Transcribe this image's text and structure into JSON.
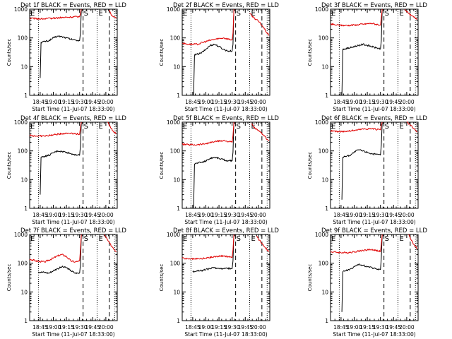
{
  "figure": {
    "ylabel": "Counts/sec",
    "xlabel": "Start Time (11-Jul-07 18:33:00)",
    "xtick_labels": [
      "18:45",
      "19:00",
      "19:15",
      "19:30",
      "19:45",
      "20:00"
    ],
    "ytick_labels": [
      "1",
      "10",
      "100",
      "1000"
    ],
    "marker_labels": [
      "E",
      "S",
      "E"
    ],
    "colors": {
      "events": "#000000",
      "lld": "#e00000",
      "axes": "#000000"
    }
  },
  "chart_data": [
    {
      "type": "line",
      "title": "Det 1f BLACK = Events, RED = LLD",
      "xlabel": "Start Time (11-Jul-07 18:33:00)",
      "ylabel": "Counts/sec",
      "xlim": [
        "18:33",
        "20:13"
      ],
      "ylim": [
        1,
        1000
      ],
      "yscale": "log",
      "series": [
        {
          "color": "#000000",
          "x": [
            "18:45",
            "18:46",
            "18:50",
            "18:55",
            "19:00",
            "19:05",
            "19:10",
            "19:15",
            "19:20",
            "19:25",
            "19:30",
            "19:31",
            "19:32"
          ],
          "y": [
            4,
            70,
            75,
            80,
            100,
            115,
            110,
            100,
            90,
            85,
            80,
            150,
            1000
          ]
        },
        {
          "color": "#e00000",
          "x": [
            "18:33",
            "18:40",
            "18:50",
            "19:00",
            "19:10",
            "19:20",
            "19:30",
            "19:31",
            "19:32"
          ],
          "y": [
            480,
            470,
            460,
            490,
            510,
            530,
            550,
            700,
            1000
          ]
        },
        {
          "color": "#e00000",
          "x": [
            "20:04",
            "20:06",
            "20:09",
            "20:12"
          ],
          "y": [
            950,
            650,
            550,
            480
          ]
        }
      ],
      "events": {
        "dotted_vlines": [
          "18:43",
          "19:50",
          "20:10"
        ],
        "dashed_vlines": [
          "19:34",
          "20:04"
        ]
      }
    },
    {
      "type": "line",
      "title": "Det 2f BLACK = Events, RED = LLD",
      "xlabel": "Start Time (11-Jul-07 18:33:00)",
      "ylabel": "Counts/sec",
      "xlim": [
        "18:33",
        "20:13"
      ],
      "ylim": [
        1,
        1000
      ],
      "yscale": "log",
      "series": [
        {
          "color": "#000000",
          "x": [
            "18:46",
            "18:47",
            "18:50",
            "18:55",
            "19:00",
            "19:05",
            "19:10",
            "19:15",
            "19:20",
            "19:25",
            "19:30",
            "19:31",
            "19:32"
          ],
          "y": [
            1,
            25,
            27,
            30,
            40,
            55,
            60,
            50,
            40,
            35,
            35,
            60,
            1000
          ]
        },
        {
          "color": "#e00000",
          "x": [
            "18:33",
            "18:40",
            "18:50",
            "19:00",
            "19:10",
            "19:20",
            "19:30",
            "19:31",
            "19:32"
          ],
          "y": [
            65,
            60,
            60,
            75,
            90,
            100,
            85,
            150,
            1000
          ]
        },
        {
          "color": "#e00000",
          "x": [
            "19:50",
            "19:55",
            "20:00",
            "20:05",
            "20:12"
          ],
          "y": [
            700,
            500,
            380,
            250,
            120
          ]
        }
      ],
      "events": {
        "dotted_vlines": [
          "18:43",
          "19:50",
          "20:10"
        ],
        "dashed_vlines": [
          "19:34",
          "20:04"
        ]
      }
    },
    {
      "type": "line",
      "title": "Det 3f BLACK = Events, RED = LLD",
      "xlabel": "Start Time (11-Jul-07 18:33:00)",
      "ylabel": "Counts/sec",
      "xlim": [
        "18:33",
        "20:13"
      ],
      "ylim": [
        1,
        1000
      ],
      "yscale": "log",
      "series": [
        {
          "color": "#000000",
          "x": [
            "18:46",
            "18:47",
            "18:50",
            "18:55",
            "19:00",
            "19:05",
            "19:10",
            "19:15",
            "19:20",
            "19:25",
            "19:30",
            "19:31",
            "19:32"
          ],
          "y": [
            1,
            40,
            42,
            45,
            50,
            55,
            60,
            55,
            50,
            45,
            42,
            80,
            1000
          ]
        },
        {
          "color": "#e00000",
          "x": [
            "18:33",
            "18:40",
            "18:50",
            "19:00",
            "19:10",
            "19:20",
            "19:30",
            "19:31",
            "19:32"
          ],
          "y": [
            300,
            280,
            270,
            280,
            300,
            320,
            280,
            500,
            1000
          ]
        },
        {
          "color": "#e00000",
          "x": [
            "19:58",
            "20:00",
            "20:05",
            "20:12"
          ],
          "y": [
            1000,
            800,
            600,
            450
          ]
        }
      ],
      "events": {
        "dotted_vlines": [
          "18:43",
          "19:50",
          "20:10"
        ],
        "dashed_vlines": [
          "19:34",
          "20:04"
        ]
      }
    },
    {
      "type": "line",
      "title": "Det 4f BLACK = Events, RED = LLD",
      "xlabel": "Start Time (11-Jul-07 18:33:00)",
      "ylabel": "Counts/sec",
      "xlim": [
        "18:33",
        "20:13"
      ],
      "ylim": [
        1,
        1000
      ],
      "yscale": "log",
      "series": [
        {
          "color": "#000000",
          "x": [
            "18:45",
            "18:46",
            "18:50",
            "18:55",
            "19:00",
            "19:05",
            "19:10",
            "19:15",
            "19:20",
            "19:25",
            "19:30",
            "19:31",
            "19:32"
          ],
          "y": [
            3,
            60,
            65,
            70,
            85,
            100,
            95,
            90,
            80,
            75,
            70,
            150,
            1000
          ]
        },
        {
          "color": "#e00000",
          "x": [
            "18:33",
            "18:40",
            "18:50",
            "19:00",
            "19:10",
            "19:20",
            "19:30",
            "19:31",
            "19:32"
          ],
          "y": [
            350,
            330,
            330,
            360,
            400,
            420,
            380,
            650,
            1000
          ]
        },
        {
          "color": "#e00000",
          "x": [
            "20:02",
            "20:05",
            "20:08",
            "20:12"
          ],
          "y": [
            1000,
            700,
            500,
            400
          ]
        }
      ],
      "events": {
        "dotted_vlines": [
          "18:43",
          "19:50",
          "20:10"
        ],
        "dashed_vlines": [
          "19:34",
          "20:04"
        ]
      }
    },
    {
      "type": "line",
      "title": "Det 5f BLACK = Events, RED = LLD",
      "xlabel": "Start Time (11-Jul-07 18:33:00)",
      "ylabel": "Counts/sec",
      "xlim": [
        "18:33",
        "20:13"
      ],
      "ylim": [
        1,
        1000
      ],
      "yscale": "log",
      "series": [
        {
          "color": "#000000",
          "x": [
            "18:46",
            "18:47",
            "18:50",
            "18:55",
            "19:00",
            "19:05",
            "19:10",
            "19:15",
            "19:20",
            "19:25",
            "19:30",
            "19:31",
            "19:32"
          ],
          "y": [
            1,
            35,
            38,
            40,
            45,
            55,
            60,
            55,
            50,
            45,
            45,
            90,
            1000
          ]
        },
        {
          "color": "#e00000",
          "x": [
            "18:33",
            "18:40",
            "18:50",
            "19:00",
            "19:10",
            "19:20",
            "19:30",
            "19:31",
            "19:32"
          ],
          "y": [
            170,
            165,
            165,
            180,
            210,
            230,
            200,
            350,
            1000
          ]
        },
        {
          "color": "#e00000",
          "x": [
            "19:52",
            "19:55",
            "20:00",
            "20:05",
            "20:12"
          ],
          "y": [
            900,
            650,
            500,
            380,
            220
          ]
        }
      ],
      "events": {
        "dotted_vlines": [
          "18:43",
          "19:50",
          "20:10"
        ],
        "dashed_vlines": [
          "19:34",
          "20:04"
        ]
      }
    },
    {
      "type": "line",
      "title": "Det 6f BLACK = Events, RED = LLD",
      "xlabel": "Start Time (11-Jul-07 18:33:00)",
      "ylabel": "Counts/sec",
      "xlim": [
        "18:33",
        "20:13"
      ],
      "ylim": [
        1,
        1000
      ],
      "yscale": "log",
      "series": [
        {
          "color": "#000000",
          "x": [
            "18:46",
            "18:47",
            "18:50",
            "18:55",
            "19:00",
            "19:05",
            "19:10",
            "19:15",
            "19:20",
            "19:25",
            "19:30",
            "19:31",
            "19:32"
          ],
          "y": [
            2,
            60,
            65,
            70,
            90,
            110,
            100,
            90,
            80,
            75,
            72,
            160,
            1000
          ]
        },
        {
          "color": "#e00000",
          "x": [
            "18:33",
            "18:40",
            "18:50",
            "19:00",
            "19:10",
            "19:20",
            "19:30",
            "19:31",
            "19:32"
          ],
          "y": [
            500,
            480,
            480,
            520,
            580,
            600,
            540,
            800,
            1000
          ]
        },
        {
          "color": "#e00000",
          "x": [
            "20:00",
            "20:04",
            "20:08",
            "20:12"
          ],
          "y": [
            1000,
            800,
            600,
            450
          ]
        }
      ],
      "events": {
        "dotted_vlines": [
          "18:43",
          "19:50",
          "20:10"
        ],
        "dashed_vlines": [
          "19:34",
          "20:04"
        ]
      }
    },
    {
      "type": "line",
      "title": "Det 7f BLACK = Events, RED = LLD",
      "xlabel": "Start Time (11-Jul-07 18:33:00)",
      "ylabel": "Counts/sec",
      "xlim": [
        "18:33",
        "20:13"
      ],
      "ylim": [
        1,
        1000
      ],
      "yscale": "log",
      "series": [
        {
          "color": "#000000",
          "x": [
            "18:43",
            "18:50",
            "18:55",
            "19:00",
            "19:05",
            "19:10",
            "19:15",
            "19:20",
            "19:25",
            "19:30",
            "19:31",
            "19:32"
          ],
          "y": [
            50,
            48,
            45,
            55,
            65,
            75,
            70,
            55,
            45,
            45,
            90,
            1000
          ]
        },
        {
          "color": "#e00000",
          "x": [
            "18:33",
            "18:40",
            "18:50",
            "19:00",
            "19:05",
            "19:10",
            "19:15",
            "19:20",
            "19:25",
            "19:30",
            "19:31",
            "19:32"
          ],
          "y": [
            140,
            120,
            110,
            150,
            180,
            200,
            170,
            120,
            110,
            120,
            300,
            1000
          ]
        },
        {
          "color": "#e00000",
          "x": [
            "19:58",
            "20:00",
            "20:04",
            "20:08",
            "20:12"
          ],
          "y": [
            1000,
            800,
            500,
            350,
            250
          ]
        }
      ],
      "events": {
        "dotted_vlines": [
          "18:43",
          "19:50",
          "20:10"
        ],
        "dashed_vlines": [
          "19:34",
          "20:04"
        ]
      }
    },
    {
      "type": "line",
      "title": "Det 8f BLACK = Events, RED = LLD",
      "xlabel": "Start Time (11-Jul-07 18:33:00)",
      "ylabel": "Counts/sec",
      "xlim": [
        "18:33",
        "20:13"
      ],
      "ylim": [
        1,
        1000
      ],
      "yscale": "log",
      "series": [
        {
          "color": "#000000",
          "x": [
            "18:45",
            "18:50",
            "18:55",
            "19:00",
            "19:05",
            "19:10",
            "19:15",
            "19:20",
            "19:25",
            "19:30",
            "19:31",
            "19:32"
          ],
          "y": [
            50,
            55,
            55,
            60,
            65,
            70,
            65,
            65,
            65,
            65,
            120,
            1000
          ]
        },
        {
          "color": "#e00000",
          "x": [
            "18:33",
            "18:40",
            "18:50",
            "19:00",
            "19:10",
            "19:20",
            "19:30",
            "19:31",
            "19:32"
          ],
          "y": [
            150,
            140,
            140,
            150,
            170,
            180,
            160,
            300,
            1000
          ]
        },
        {
          "color": "#e00000",
          "x": [
            "19:58",
            "20:00",
            "20:04",
            "20:08",
            "20:12"
          ],
          "y": [
            900,
            700,
            500,
            350,
            250
          ]
        }
      ],
      "events": {
        "dotted_vlines": [
          "18:43",
          "19:50",
          "20:10"
        ],
        "dashed_vlines": [
          "19:34",
          "20:04"
        ]
      }
    },
    {
      "type": "line",
      "title": "Det 9f BLACK = Events, RED = LLD",
      "xlabel": "Start Time (11-Jul-07 18:33:00)",
      "ylabel": "Counts/sec",
      "xlim": [
        "18:33",
        "20:13"
      ],
      "ylim": [
        1,
        1000
      ],
      "yscale": "log",
      "series": [
        {
          "color": "#000000",
          "x": [
            "18:46",
            "18:47",
            "18:50",
            "18:55",
            "19:00",
            "19:05",
            "19:10",
            "19:15",
            "19:20",
            "19:25",
            "19:30",
            "19:31",
            "19:32"
          ],
          "y": [
            2,
            50,
            55,
            60,
            75,
            90,
            85,
            75,
            70,
            65,
            60,
            150,
            1000
          ]
        },
        {
          "color": "#e00000",
          "x": [
            "18:33",
            "18:40",
            "18:50",
            "19:00",
            "19:10",
            "19:20",
            "19:30",
            "19:31",
            "19:32"
          ],
          "y": [
            250,
            240,
            230,
            250,
            280,
            300,
            260,
            450,
            1000
          ]
        },
        {
          "color": "#e00000",
          "x": [
            "20:02",
            "20:05",
            "20:08",
            "20:12"
          ],
          "y": [
            1000,
            650,
            450,
            320
          ]
        }
      ],
      "events": {
        "dotted_vlines": [
          "18:43",
          "19:50",
          "20:10"
        ],
        "dashed_vlines": [
          "19:34",
          "20:04"
        ]
      }
    }
  ]
}
